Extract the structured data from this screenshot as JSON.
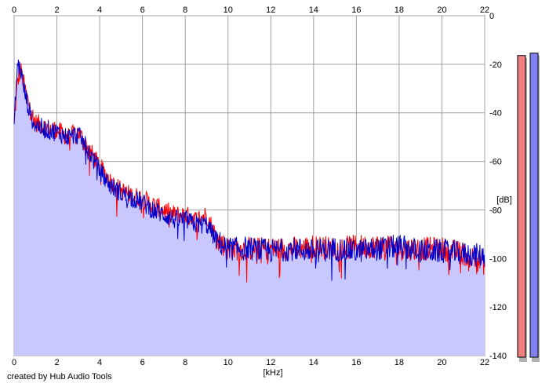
{
  "chart_data": {
    "type": "area",
    "xlabel": "[kHz]",
    "ylabel": "[dB]",
    "xlim": [
      0,
      22
    ],
    "ylim": [
      -140,
      0
    ],
    "x_ticks": [
      "0",
      "2",
      "4",
      "6",
      "8",
      "10",
      "12",
      "14",
      "16",
      "18",
      "20",
      "22"
    ],
    "y_ticks": [
      "0",
      "-20",
      "-40",
      "-60",
      "-80",
      "-100",
      "-120",
      "-140"
    ],
    "grid": true,
    "series": [
      {
        "color": "#ff0000",
        "points": [
          [
            0,
            -45
          ],
          [
            0.15,
            -28
          ],
          [
            0.3,
            -22
          ],
          [
            0.5,
            -30
          ],
          [
            0.8,
            -40
          ],
          [
            1.0,
            -44
          ],
          [
            1.5,
            -46
          ],
          [
            2.0,
            -47
          ],
          [
            2.5,
            -50
          ],
          [
            3.0,
            -48
          ],
          [
            3.5,
            -55
          ],
          [
            4.0,
            -62
          ],
          [
            4.5,
            -68
          ],
          [
            5.0,
            -72
          ],
          [
            5.5,
            -74
          ],
          [
            6.0,
            -75
          ],
          [
            6.5,
            -78
          ],
          [
            7.0,
            -80
          ],
          [
            7.5,
            -82
          ],
          [
            8.0,
            -82
          ],
          [
            8.5,
            -84
          ],
          [
            9.0,
            -82
          ],
          [
            9.5,
            -92
          ],
          [
            10.0,
            -96
          ],
          [
            11.0,
            -96
          ],
          [
            12.0,
            -96
          ],
          [
            13.0,
            -96
          ],
          [
            14.0,
            -95
          ],
          [
            15.0,
            -96
          ],
          [
            16.0,
            -95
          ],
          [
            17.0,
            -95
          ],
          [
            18.0,
            -96
          ],
          [
            19.0,
            -96
          ],
          [
            20.0,
            -96
          ],
          [
            21.0,
            -98
          ],
          [
            22.0,
            -102
          ]
        ]
      },
      {
        "color": "#0000cc",
        "points": [
          [
            0,
            -45
          ],
          [
            0.15,
            -20
          ],
          [
            0.3,
            -22
          ],
          [
            0.5,
            -32
          ],
          [
            0.8,
            -42
          ],
          [
            1.0,
            -45
          ],
          [
            1.5,
            -47
          ],
          [
            2.0,
            -48
          ],
          [
            2.5,
            -50
          ],
          [
            3.0,
            -49
          ],
          [
            3.5,
            -56
          ],
          [
            4.0,
            -64
          ],
          [
            4.5,
            -70
          ],
          [
            5.0,
            -73
          ],
          [
            5.5,
            -75
          ],
          [
            6.0,
            -77
          ],
          [
            6.5,
            -80
          ],
          [
            7.0,
            -82
          ],
          [
            7.5,
            -84
          ],
          [
            8.0,
            -84
          ],
          [
            8.5,
            -86
          ],
          [
            9.0,
            -86
          ],
          [
            9.5,
            -93
          ],
          [
            10.0,
            -96
          ],
          [
            11.0,
            -96
          ],
          [
            12.0,
            -97
          ],
          [
            13.0,
            -96
          ],
          [
            14.0,
            -97
          ],
          [
            15.0,
            -96
          ],
          [
            16.0,
            -97
          ],
          [
            17.0,
            -96
          ],
          [
            18.0,
            -95
          ],
          [
            19.0,
            -97
          ],
          [
            20.0,
            -97
          ],
          [
            21.0,
            -98
          ],
          [
            22.0,
            -99
          ]
        ]
      }
    ],
    "level_meters": [
      {
        "color": "#f08080",
        "level_db": -8
      },
      {
        "color": "#8080f0",
        "level_db": -7
      }
    ]
  },
  "footer": {
    "credit": "created by Hub Audio Tools"
  }
}
